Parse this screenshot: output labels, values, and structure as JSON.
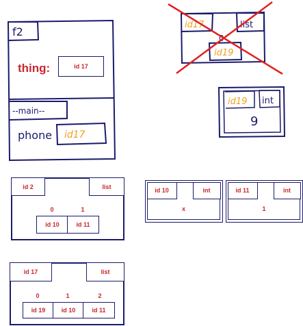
{
  "frames": {
    "f2": {
      "name": "f2",
      "var_name": "thing:",
      "var_value": "id 17"
    },
    "main": {
      "name": "--main--",
      "var_name": "phone",
      "var_value": "id17"
    }
  },
  "crossed_object": {
    "id": "id17",
    "type": "list",
    "index": "0",
    "element": "id19"
  },
  "int_obj_9": {
    "id": "id19",
    "type": "int",
    "value": "9"
  },
  "list_id2": {
    "id": "id 2",
    "type": "list",
    "indices": [
      "0",
      "1"
    ],
    "elements": [
      "id 10",
      "id 11"
    ]
  },
  "int_id10": {
    "id": "id 10",
    "type": "int",
    "value": "x"
  },
  "int_id11": {
    "id": "id 11",
    "type": "int",
    "value": "1"
  },
  "list_id17": {
    "id": "id 17",
    "type": "list",
    "indices": [
      "0",
      "1",
      "2"
    ],
    "elements": [
      "id 19",
      "id 10",
      "id 11"
    ]
  },
  "colors": {
    "ink": "#1a1a6b",
    "label": "#c8262f",
    "hand_id": "#f0a020",
    "cross": "#e02020"
  }
}
